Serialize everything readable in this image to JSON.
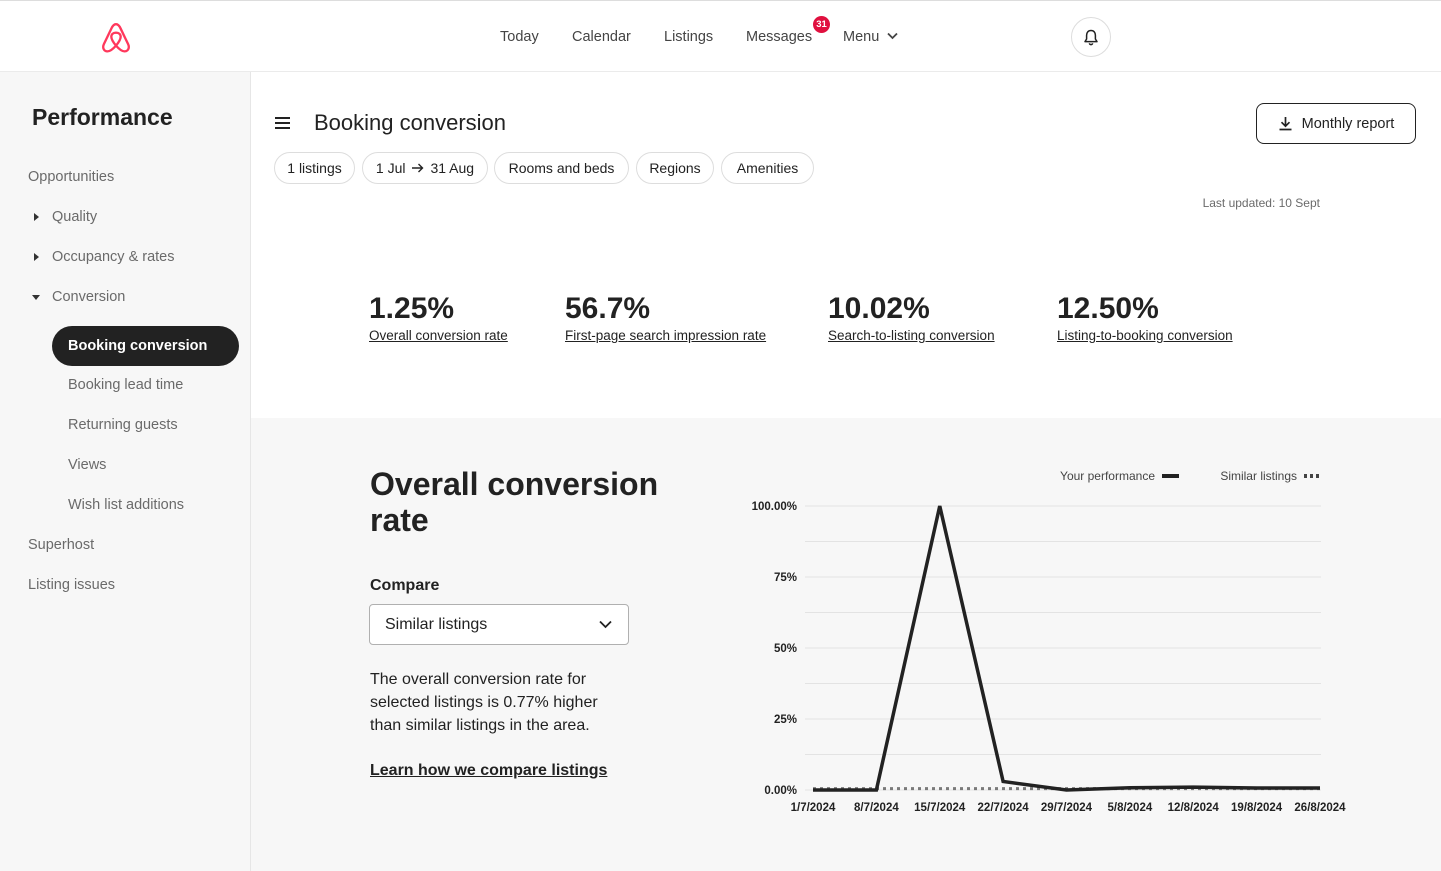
{
  "nav": {
    "items": [
      "Today",
      "Calendar",
      "Listings",
      "Messages",
      "Menu"
    ],
    "messages_badge": "31"
  },
  "sidebar": {
    "title": "Performance",
    "items": [
      {
        "label": "Opportunities"
      },
      {
        "label": "Quality",
        "expander": "collapsed"
      },
      {
        "label": "Occupancy & rates",
        "expander": "collapsed"
      },
      {
        "label": "Conversion",
        "expander": "expanded"
      },
      {
        "label": "Booking conversion",
        "active": true
      },
      {
        "label": "Booking lead time"
      },
      {
        "label": "Returning guests"
      },
      {
        "label": "Views"
      },
      {
        "label": "Wish list additions"
      },
      {
        "label": "Superhost"
      },
      {
        "label": "Listing issues"
      }
    ]
  },
  "header": {
    "title": "Booking conversion",
    "report_button": "Monthly report",
    "filters": {
      "listings": "1 listings",
      "date_from": "1 Jul",
      "date_to": "31 Aug",
      "rooms": "Rooms and beds",
      "regions": "Regions",
      "amenities": "Amenities"
    },
    "last_updated": "Last updated: 10 Sept"
  },
  "stats": [
    {
      "value": "1.25%",
      "label": "Overall conversion rate"
    },
    {
      "value": "56.7%",
      "label": "First-page search impression rate"
    },
    {
      "value": "10.02%",
      "label": "Search-to-listing conversion"
    },
    {
      "value": "12.50%",
      "label": "Listing-to-booking conversion"
    }
  ],
  "panel": {
    "title": "Overall conversion rate",
    "compare_label": "Compare",
    "compare_value": "Similar listings",
    "description": "The overall conversion rate for selected listings is 0.77% higher than similar listings in the area.",
    "learn_link": "Learn how we compare listings"
  },
  "chart_data": {
    "type": "line",
    "x": [
      "1/7/2024",
      "8/7/2024",
      "15/7/2024",
      "22/7/2024",
      "29/7/2024",
      "5/8/2024",
      "12/8/2024",
      "19/8/2024",
      "26/8/2024"
    ],
    "series": [
      {
        "name": "Your performance",
        "style": "solid",
        "color": "#222222",
        "values": [
          0,
          0,
          100,
          3,
          0,
          0.8,
          1,
          0.7,
          0.7
        ]
      },
      {
        "name": "Similar listings",
        "style": "dotted",
        "color": "#7a7a7a",
        "values": [
          0.5,
          0.5,
          0.5,
          0.5,
          0.5,
          0.5,
          0.5,
          0.5,
          0.5
        ]
      }
    ],
    "y_ticks": [
      "0.00%",
      "25%",
      "50%",
      "75%",
      "100.00%"
    ],
    "ylim": [
      0,
      100
    ],
    "grid": true,
    "legend": "top-right"
  }
}
